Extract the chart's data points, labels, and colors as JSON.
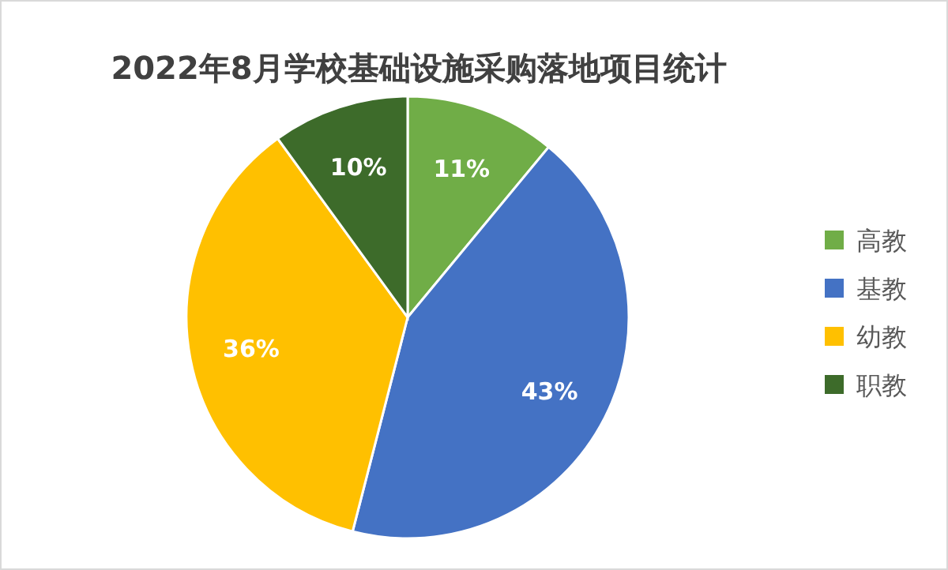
{
  "chart_data": {
    "type": "pie",
    "title": "2022年8月学校基础设施采购落地项目统计",
    "categories": [
      "高教",
      "基教",
      "幼教",
      "职教"
    ],
    "values": [
      11,
      43,
      36,
      10
    ],
    "colors": [
      "#70ad47",
      "#4472c4",
      "#ffc000",
      "#3d6b2a"
    ],
    "value_labels": [
      "11%",
      "43%",
      "36%",
      "10%"
    ],
    "legend": "right"
  }
}
